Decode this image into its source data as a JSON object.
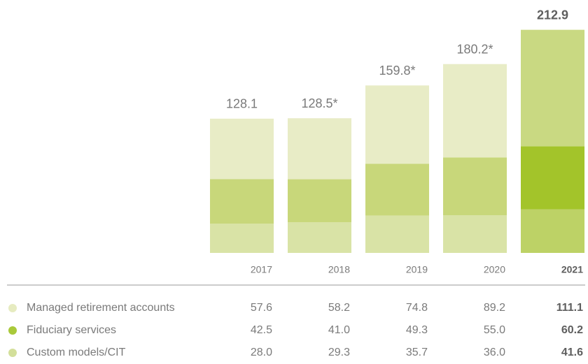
{
  "chart_data": {
    "type": "stacked-bar",
    "categories": [
      "2017",
      "2018",
      "2019",
      "2020",
      "2021"
    ],
    "series": [
      {
        "name": "Custom models/CIT",
        "color": "#d3df9a",
        "colors": [
          "#d9e3a6",
          "#d9e3a6",
          "#d9e3a6",
          "#d9e3a6",
          "#bdd266"
        ],
        "values": [
          28.0,
          29.3,
          35.7,
          36.0,
          41.6
        ],
        "value_labels": [
          "28.0",
          "29.3",
          "35.7",
          "36.0",
          "41.6"
        ]
      },
      {
        "name": "Fiduciary services",
        "color": "#a9c93a",
        "colors": [
          "#c8d77a",
          "#c8d77a",
          "#c8d77a",
          "#c8d77a",
          "#a3c42a"
        ],
        "values": [
          42.5,
          41.0,
          49.3,
          55.0,
          60.2
        ],
        "value_labels": [
          "42.5",
          "41.0",
          "49.3",
          "55.0",
          "60.2"
        ]
      },
      {
        "name": "Managed retirement accounts",
        "color": "#e6ebc0",
        "colors": [
          "#e8ecc6",
          "#e8ecc6",
          "#e8ecc6",
          "#e8ecc6",
          "#c9d982"
        ],
        "values": [
          57.6,
          58.2,
          74.8,
          89.2,
          111.1
        ],
        "value_labels": [
          "57.6",
          "58.2",
          "74.8",
          "89.2",
          "111.1"
        ]
      }
    ],
    "totals": [
      128.1,
      128.5,
      159.8,
      180.2,
      212.9
    ],
    "total_labels": [
      "128.1",
      "128.5*",
      "159.8*",
      "180.2*",
      "212.9"
    ]
  }
}
